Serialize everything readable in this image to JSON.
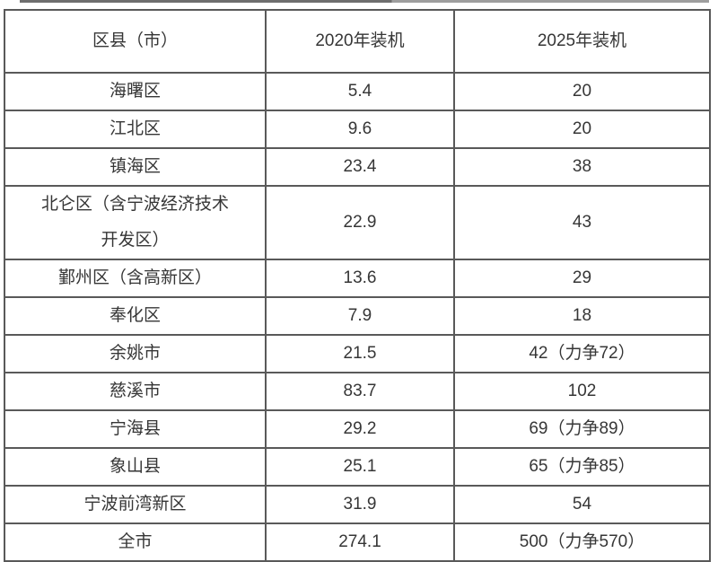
{
  "colors": {
    "text": "#363636",
    "border": "#595959",
    "background": "#ffffff"
  },
  "table": {
    "headers": {
      "region": "区县（市）",
      "install_2020": "2020年装机",
      "install_2025": "2025年装机"
    },
    "rows": [
      {
        "region": "海曙区",
        "install_2020": "5.4",
        "install_2025": "20"
      },
      {
        "region": "江北区",
        "install_2020": "9.6",
        "install_2025": "20"
      },
      {
        "region": "镇海区",
        "install_2020": "23.4",
        "install_2025": "38"
      },
      {
        "region": "北仑区（含宁波经济技术\n开发区）",
        "install_2020": "22.9",
        "install_2025": "43"
      },
      {
        "region": "鄞州区（含高新区）",
        "install_2020": "13.6",
        "install_2025": "29"
      },
      {
        "region": "奉化区",
        "install_2020": "7.9",
        "install_2025": "18"
      },
      {
        "region": "余姚市",
        "install_2020": "21.5",
        "install_2025": "42（力争72）"
      },
      {
        "region": "慈溪市",
        "install_2020": "83.7",
        "install_2025": "102"
      },
      {
        "region": "宁海县",
        "install_2020": "29.2",
        "install_2025": "69（力争89）"
      },
      {
        "region": "象山县",
        "install_2020": "25.1",
        "install_2025": "65（力争85）"
      },
      {
        "region": "宁波前湾新区",
        "install_2020": "31.9",
        "install_2025": "54"
      },
      {
        "region": "全市",
        "install_2020": "274.1",
        "install_2025": "500（力争570）"
      }
    ]
  }
}
